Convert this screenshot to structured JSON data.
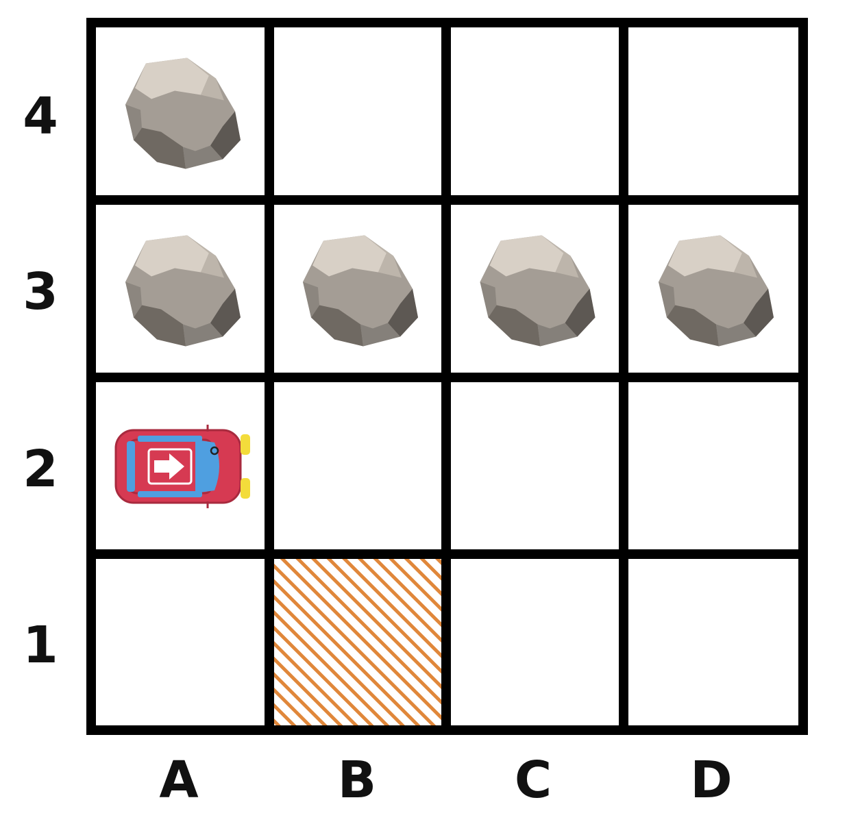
{
  "board": {
    "columns": [
      "A",
      "B",
      "C",
      "D"
    ],
    "rows": [
      "4",
      "3",
      "2",
      "1"
    ],
    "colors": {
      "grid_line": "#000000",
      "cell_background": "#ffffff",
      "rock_base": "#a49d95",
      "rock_light": "#d8d0c6",
      "rock_dark": "#6f6962",
      "car_body": "#d63a52",
      "car_window": "#4f9fe0",
      "car_light": "#f3dc3b",
      "hatch": "#e0873a"
    },
    "rocks": [
      {
        "cell": "A4",
        "icon": "rock-icon"
      },
      {
        "cell": "A3",
        "icon": "rock-icon"
      },
      {
        "cell": "B3",
        "icon": "rock-icon"
      },
      {
        "cell": "C3",
        "icon": "rock-icon"
      },
      {
        "cell": "D3",
        "icon": "rock-icon"
      }
    ],
    "car": {
      "cell": "A2",
      "facing": "right",
      "icon": "car-icon"
    },
    "target": {
      "cell": "B1",
      "pattern": "diagonal-hatch",
      "icon": "hatched-target-cell"
    }
  }
}
